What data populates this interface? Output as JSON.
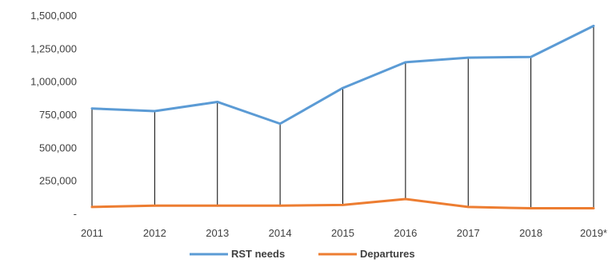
{
  "chart_data": {
    "type": "line",
    "title": "",
    "xlabel": "",
    "ylabel": "",
    "categories": [
      "2011",
      "2012",
      "2013",
      "2014",
      "2015",
      "2016",
      "2017",
      "2018",
      "2019*"
    ],
    "series": [
      {
        "name": "RST needs",
        "values": [
          800000,
          780000,
          850000,
          685000,
          955000,
          1150000,
          1185000,
          1190000,
          1425000
        ],
        "color": "#5b9bd5"
      },
      {
        "name": "Departures",
        "values": [
          55000,
          65000,
          65000,
          65000,
          70000,
          115000,
          55000,
          45000,
          45000
        ],
        "color": "#ed7d31"
      }
    ],
    "ylim": [
      0,
      1500000
    ],
    "yticks": [
      0,
      250000,
      500000,
      750000,
      1000000,
      1250000,
      1500000
    ],
    "ytick_labels": [
      "-",
      "250,000",
      "500,000",
      "750,000",
      "1,000,000",
      "1,250,000",
      "1,500,000"
    ],
    "drop_lines": true,
    "grid": false,
    "legend_position": "bottom",
    "drop_line_color": "#000000"
  }
}
